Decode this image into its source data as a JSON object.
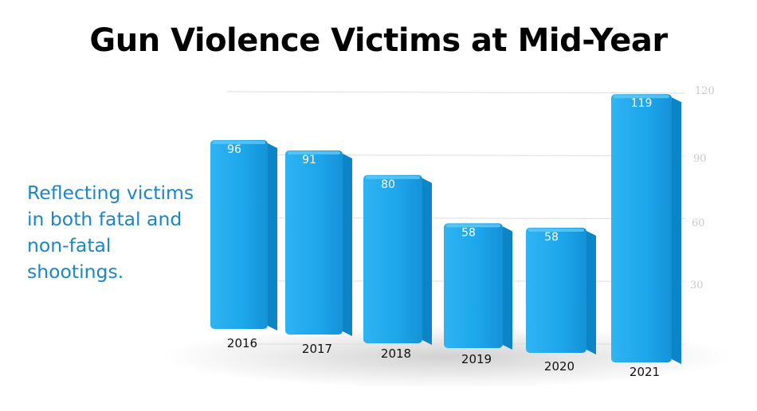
{
  "title": "Gun Violence Victims at Mid-Year",
  "subtitle": "Reflecting victims in both fatal and non-fatal shootings.",
  "colors": {
    "bar": "#1ea7ec",
    "bar_top": "#5fcaf8",
    "bar_side": "#0b85c6",
    "subtitle": "#1a86c8"
  },
  "chart_data": {
    "type": "bar",
    "title": "Gun Violence Victims at Mid-Year",
    "categories": [
      "2016",
      "2017",
      "2018",
      "2019",
      "2020",
      "2021"
    ],
    "values": [
      96,
      91,
      80,
      58,
      58,
      119
    ],
    "ylim": [
      0,
      120
    ],
    "yticks": [
      30,
      60,
      90,
      120
    ],
    "ytick_labels": [
      "30",
      "60",
      "90",
      "120"
    ],
    "xlabel": "",
    "ylabel": "",
    "grid": true,
    "legend": "none"
  }
}
